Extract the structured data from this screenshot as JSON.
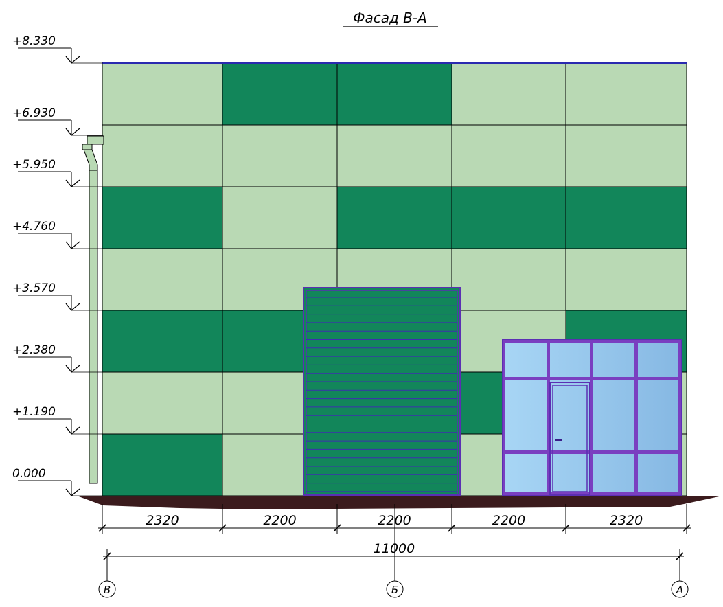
{
  "title": "Фасад В-А",
  "levels": [
    "+8.330",
    "+6.930",
    "+5.950",
    "+4.760",
    "+3.570",
    "+2.380",
    "+1.190",
    "0.000"
  ],
  "bays": [
    "2320",
    "2200",
    "2200",
    "2200",
    "2320"
  ],
  "total": "11000",
  "axes": [
    "В",
    "Б",
    "А"
  ],
  "colors": {
    "panel_light": "#b9d9b4",
    "panel_dark": "#12865a",
    "door": "#12865a",
    "door_frame": "#5b2fb3",
    "glass": "#9fcdf0",
    "ground": "#3b1b1d",
    "parapet": "#2a2ab0"
  },
  "panel_pattern": [
    [
      "light",
      "dark",
      "dark",
      "light",
      "light"
    ],
    [
      "light",
      "light",
      "light",
      "light",
      "light"
    ],
    [
      "dark",
      "light",
      "dark",
      "dark",
      "dark"
    ],
    [
      "light",
      "light",
      "light",
      "light",
      "light"
    ],
    [
      "dark",
      "dark",
      "dark",
      "light",
      "dark"
    ],
    [
      "light",
      "light",
      "light",
      "dark",
      "light"
    ],
    [
      "dark",
      "light",
      "light",
      "light",
      "light"
    ]
  ]
}
